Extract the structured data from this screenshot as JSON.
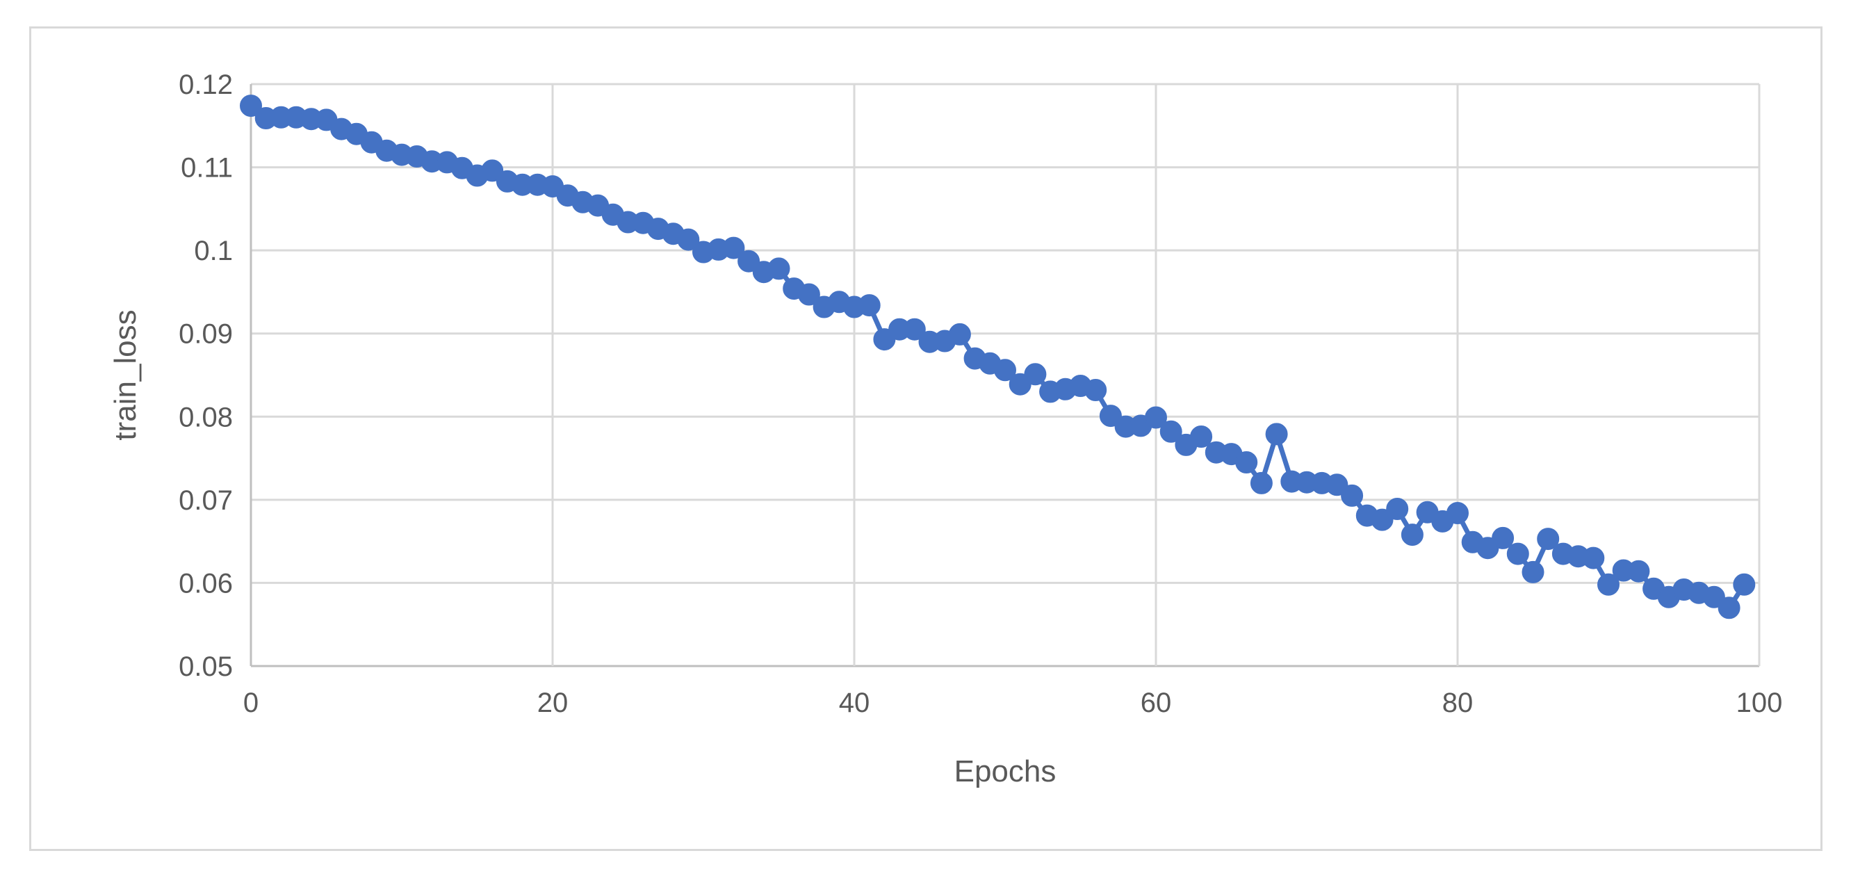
{
  "chart_data": {
    "type": "line",
    "title": "",
    "xlabel": "Epochs",
    "ylabel": "train_loss",
    "xlim": [
      0,
      100
    ],
    "ylim": [
      0.05,
      0.12
    ],
    "x_ticks": [
      0,
      20,
      40,
      60,
      80,
      100
    ],
    "x_tick_labels": [
      "0",
      "20",
      "40",
      "60",
      "80",
      "100"
    ],
    "y_ticks": [
      0.05,
      0.06,
      0.07,
      0.08,
      0.09,
      0.1,
      0.11,
      0.12
    ],
    "y_tick_labels": [
      "0.05",
      "0.06",
      "0.07",
      "0.08",
      "0.09",
      "0.1",
      "0.11",
      "0.12"
    ],
    "grid": true,
    "legend": "none",
    "series": [
      {
        "color": "#4472c4",
        "markers": true,
        "x": [
          0,
          1,
          2,
          3,
          4,
          5,
          6,
          7,
          8,
          9,
          10,
          11,
          12,
          13,
          14,
          15,
          16,
          17,
          18,
          19,
          20,
          21,
          22,
          23,
          24,
          25,
          26,
          27,
          28,
          29,
          30,
          31,
          32,
          33,
          34,
          35,
          36,
          37,
          38,
          39,
          40,
          41,
          42,
          43,
          44,
          45,
          46,
          47,
          48,
          49,
          50,
          51,
          52,
          53,
          54,
          55,
          56,
          57,
          58,
          59,
          60,
          61,
          62,
          63,
          64,
          65,
          66,
          67,
          68,
          69,
          70,
          71,
          72,
          73,
          74,
          75,
          76,
          77,
          78,
          79,
          80,
          81,
          82,
          83,
          84,
          85,
          86,
          87,
          88,
          89,
          90,
          91,
          92,
          93,
          94,
          95,
          96,
          97,
          98,
          99
        ],
        "y": [
          0.1174,
          0.1159,
          0.116,
          0.116,
          0.1158,
          0.1157,
          0.1146,
          0.114,
          0.113,
          0.112,
          0.1115,
          0.1113,
          0.1107,
          0.1106,
          0.1099,
          0.109,
          0.1096,
          0.1083,
          0.1079,
          0.1079,
          0.1077,
          0.1066,
          0.1058,
          0.1054,
          0.1043,
          0.1034,
          0.1033,
          0.1026,
          0.102,
          0.1013,
          0.0998,
          0.1001,
          0.1003,
          0.0987,
          0.0974,
          0.0978,
          0.0954,
          0.0947,
          0.0932,
          0.0938,
          0.0932,
          0.0934,
          0.0893,
          0.0905,
          0.0905,
          0.089,
          0.0891,
          0.0899,
          0.087,
          0.0864,
          0.0856,
          0.0839,
          0.0851,
          0.083,
          0.0833,
          0.0837,
          0.0832,
          0.0801,
          0.0788,
          0.0789,
          0.0799,
          0.0782,
          0.0766,
          0.0776,
          0.0757,
          0.0755,
          0.0745,
          0.072,
          0.0779,
          0.0722,
          0.0721,
          0.072,
          0.0718,
          0.0705,
          0.0681,
          0.0676,
          0.0689,
          0.0658,
          0.0685,
          0.0674,
          0.0684,
          0.0649,
          0.0642,
          0.0654,
          0.0635,
          0.0613,
          0.0653,
          0.0635,
          0.0632,
          0.063,
          0.0598,
          0.0615,
          0.0614,
          0.0593,
          0.0583,
          0.0592,
          0.0588,
          0.0583,
          0.057,
          0.0598
        ]
      }
    ]
  }
}
